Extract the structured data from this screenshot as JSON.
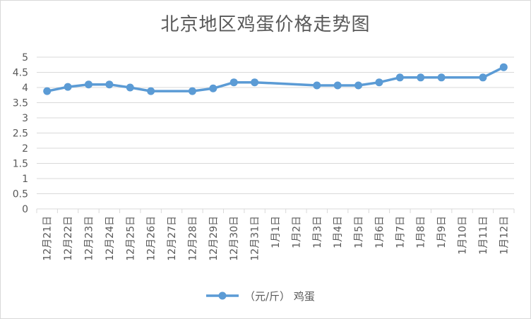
{
  "chart_data": {
    "type": "line",
    "title": "北京地区鸡蛋价格走势图",
    "xlabel": "",
    "ylabel": "",
    "ylim": [
      0,
      5
    ],
    "yticks": [
      "0",
      "0.5",
      "1",
      "1.5",
      "2",
      "2.5",
      "3",
      "3.5",
      "4",
      "4.5",
      "5"
    ],
    "grid": true,
    "legend_position": "bottom",
    "categories": [
      "12月21日",
      "12月22日",
      "12月23日",
      "12月24日",
      "12月25日",
      "12月26日",
      "12月27日",
      "12月28日",
      "12月29日",
      "12月30日",
      "12月31日",
      "1月1日",
      "1月2日",
      "1月3日",
      "1月4日",
      "1月5日",
      "1月6日",
      "1月7日",
      "1月8日",
      "1月9日",
      "1月10日",
      "1月11日",
      "1月12日"
    ],
    "series": [
      {
        "name": "（元/斤） 鸡蛋",
        "color": "#5b9bd5",
        "values": [
          3.88,
          4.02,
          4.1,
          4.1,
          4.0,
          3.88,
          null,
          3.88,
          3.97,
          4.17,
          4.17,
          null,
          null,
          4.07,
          4.07,
          4.07,
          4.17,
          4.33,
          4.33,
          4.33,
          null,
          4.33,
          4.67
        ]
      }
    ]
  }
}
